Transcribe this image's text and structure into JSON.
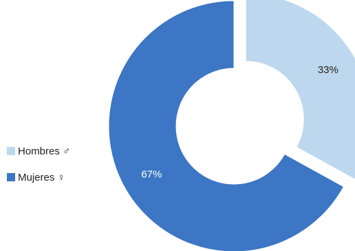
{
  "chart_data": {
    "type": "pie",
    "variant": "donut",
    "title": "",
    "slices": [
      {
        "name": "Hombres ♂",
        "value": 33,
        "label": "33%",
        "color": "#BDD7EE",
        "label_color": "#222222",
        "exploded": true
      },
      {
        "name": "Mujeres ♀",
        "value": 67,
        "label": "67%",
        "color": "#3C76C4",
        "label_color": "#FFFFFF",
        "exploded": false
      }
    ],
    "legend_position": "left"
  }
}
